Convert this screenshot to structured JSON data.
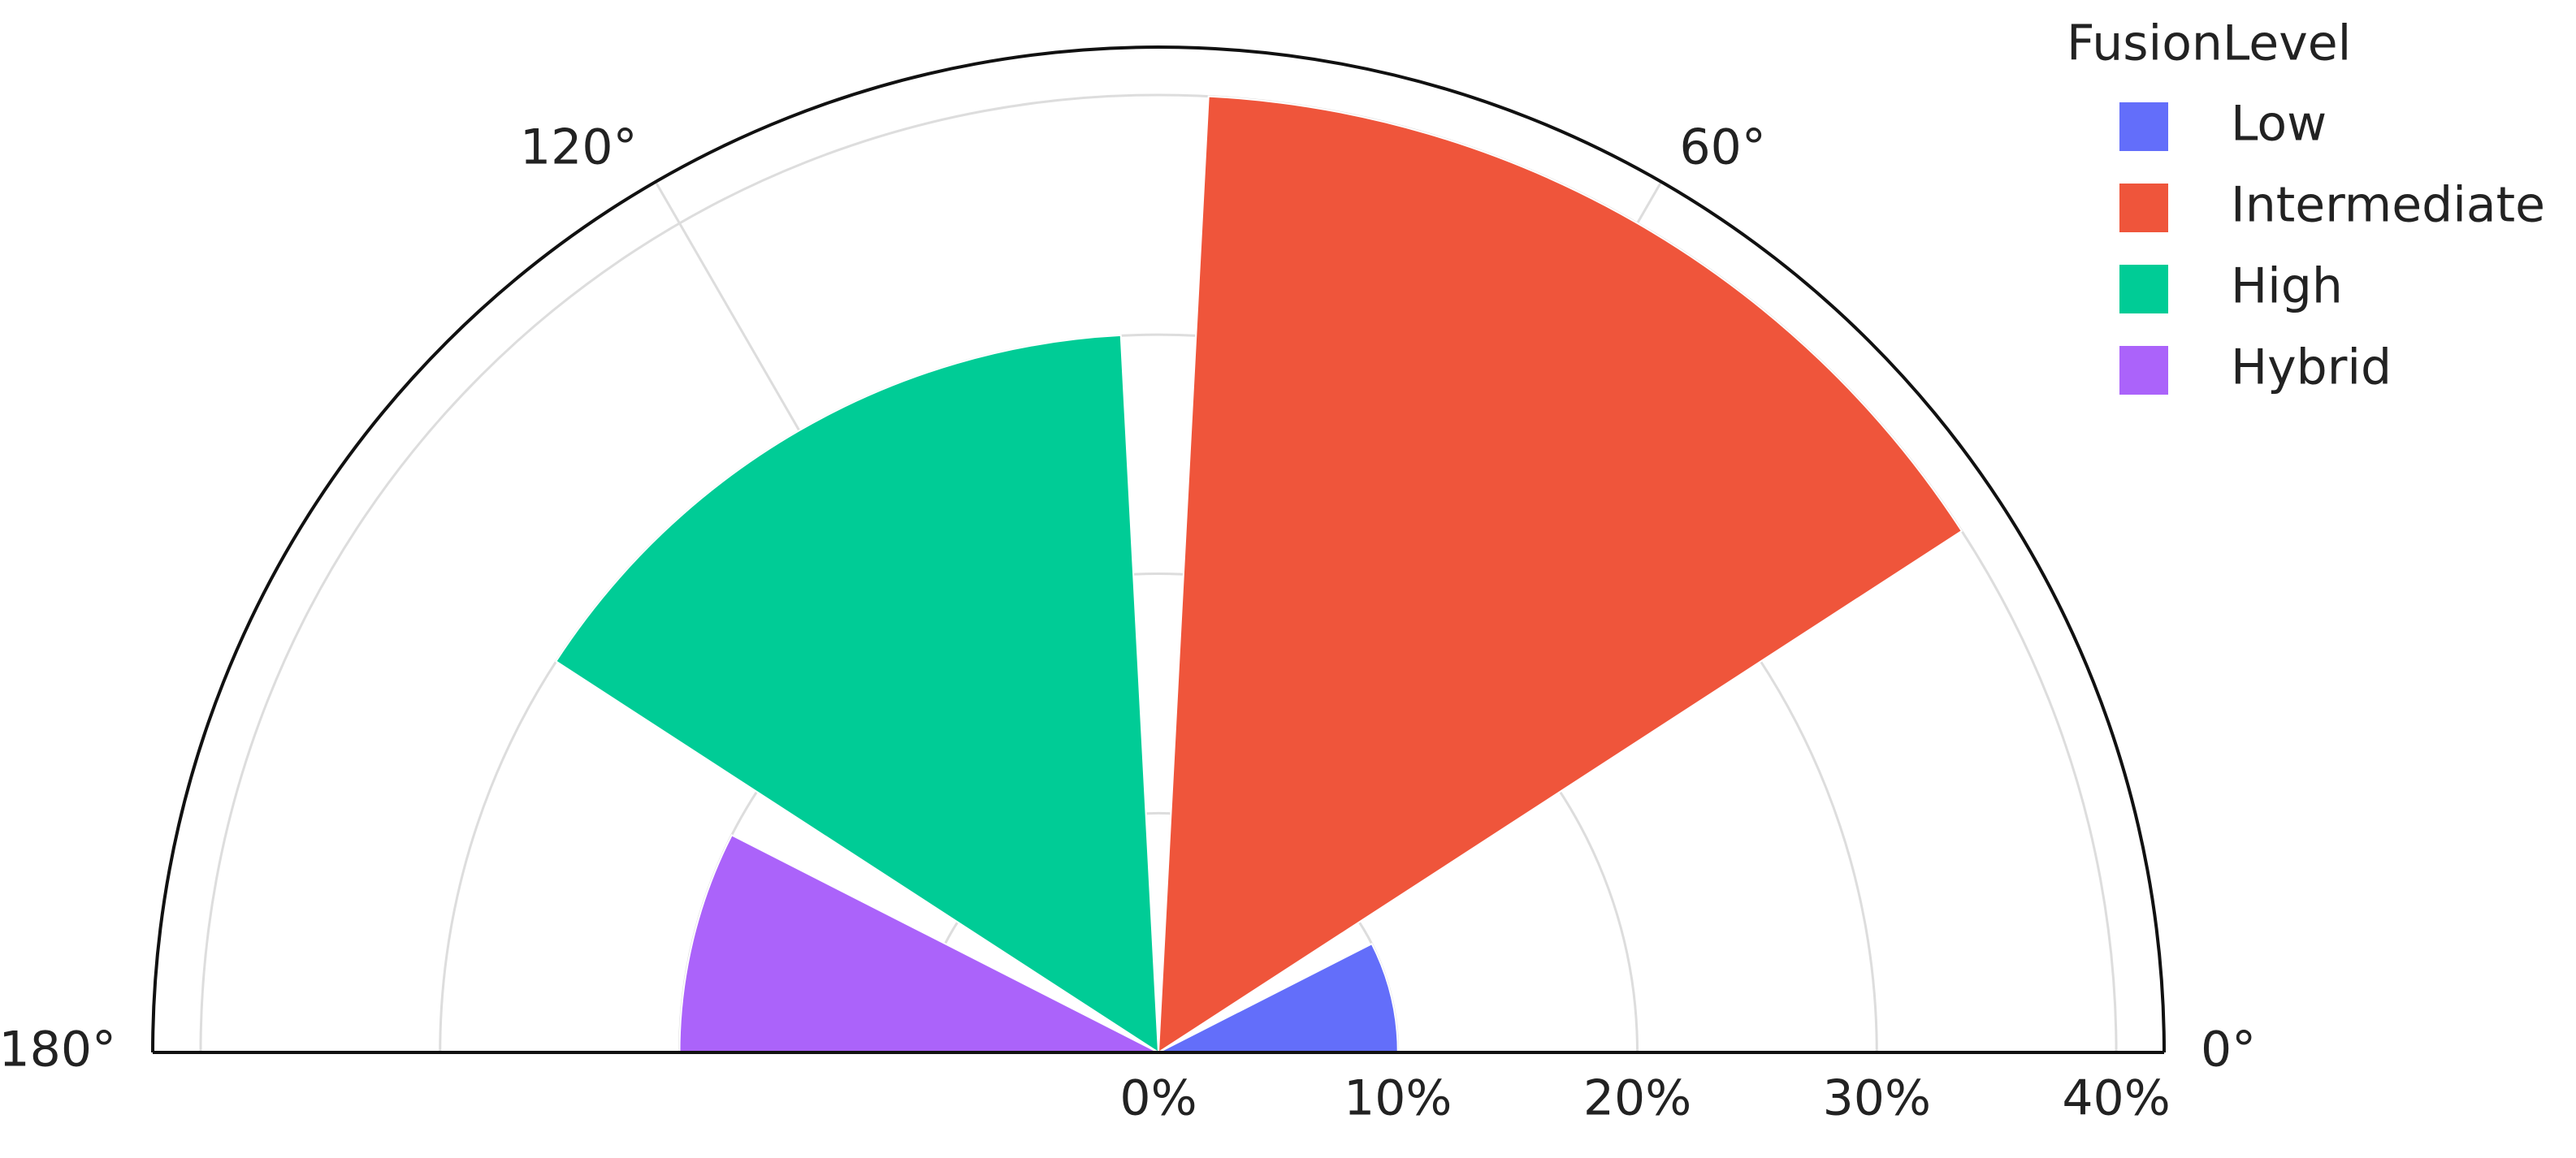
{
  "chart_data": {
    "type": "barpolar",
    "legend_title": "FusionLevel",
    "series": [
      {
        "name": "Low",
        "color": "#636efa",
        "theta": [
          0
        ],
        "values": [
          10
        ]
      },
      {
        "name": "Intermediate",
        "color": "#ef553b",
        "theta": [
          60
        ],
        "values": [
          40
        ]
      },
      {
        "name": "High",
        "color": "#00cc96",
        "theta": [
          120
        ],
        "values": [
          30
        ]
      },
      {
        "name": "Hybrid",
        "color": "#ab63fa",
        "theta": [
          180
        ],
        "values": [
          20
        ]
      }
    ],
    "rlim": [
      0,
      42
    ],
    "rticks": [
      {
        "value": 0,
        "label": "0%"
      },
      {
        "value": 10,
        "label": "10%"
      },
      {
        "value": 20,
        "label": "20%"
      },
      {
        "value": 30,
        "label": "30%"
      },
      {
        "value": 40,
        "label": "40%"
      }
    ],
    "thetalim": [
      0,
      180
    ],
    "thetaticks": [
      {
        "value": 0,
        "label": "0°"
      },
      {
        "value": 60,
        "label": "60°"
      },
      {
        "value": 120,
        "label": "120°"
      },
      {
        "value": 180,
        "label": "180°"
      }
    ],
    "grid": true
  }
}
